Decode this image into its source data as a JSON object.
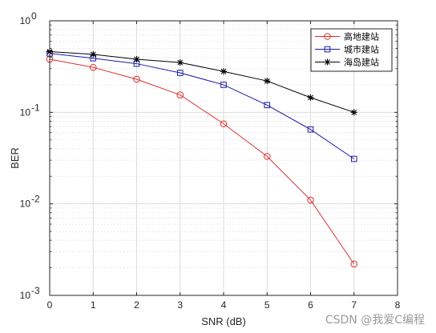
{
  "watermark": "CSDN @我爱C编程",
  "chart_data": {
    "type": "line",
    "title": "",
    "xlabel": "SNR (dB)",
    "ylabel": "BER",
    "xlim": [
      0,
      8
    ],
    "ylim": [
      0.001,
      1
    ],
    "yscale": "log",
    "grid": true,
    "legend_position": "top-right",
    "x_ticks": [
      0,
      1,
      2,
      3,
      4,
      5,
      6,
      7,
      8
    ],
    "y_ticks": [
      {
        "base": "10",
        "exp": "0",
        "value": 1
      },
      {
        "base": "10",
        "exp": "-1",
        "value": 0.1
      },
      {
        "base": "10",
        "exp": "-2",
        "value": 0.01
      },
      {
        "base": "10",
        "exp": "-3",
        "value": 0.001
      }
    ],
    "x": [
      0,
      1,
      2,
      3,
      4,
      5,
      6,
      7
    ],
    "series": [
      {
        "name": "高地建站",
        "color": "#e03030",
        "marker": "circle",
        "values": [
          0.38,
          0.31,
          0.23,
          0.155,
          0.075,
          0.033,
          0.011,
          0.0022
        ]
      },
      {
        "name": "城市建站",
        "color": "#1a1aa6",
        "marker": "square",
        "values": [
          0.44,
          0.39,
          0.34,
          0.27,
          0.2,
          0.12,
          0.065,
          0.031
        ]
      },
      {
        "name": "海岛建站",
        "color": "#000000",
        "marker": "star",
        "values": [
          0.46,
          0.43,
          0.38,
          0.35,
          0.28,
          0.22,
          0.145,
          0.1
        ]
      }
    ]
  }
}
